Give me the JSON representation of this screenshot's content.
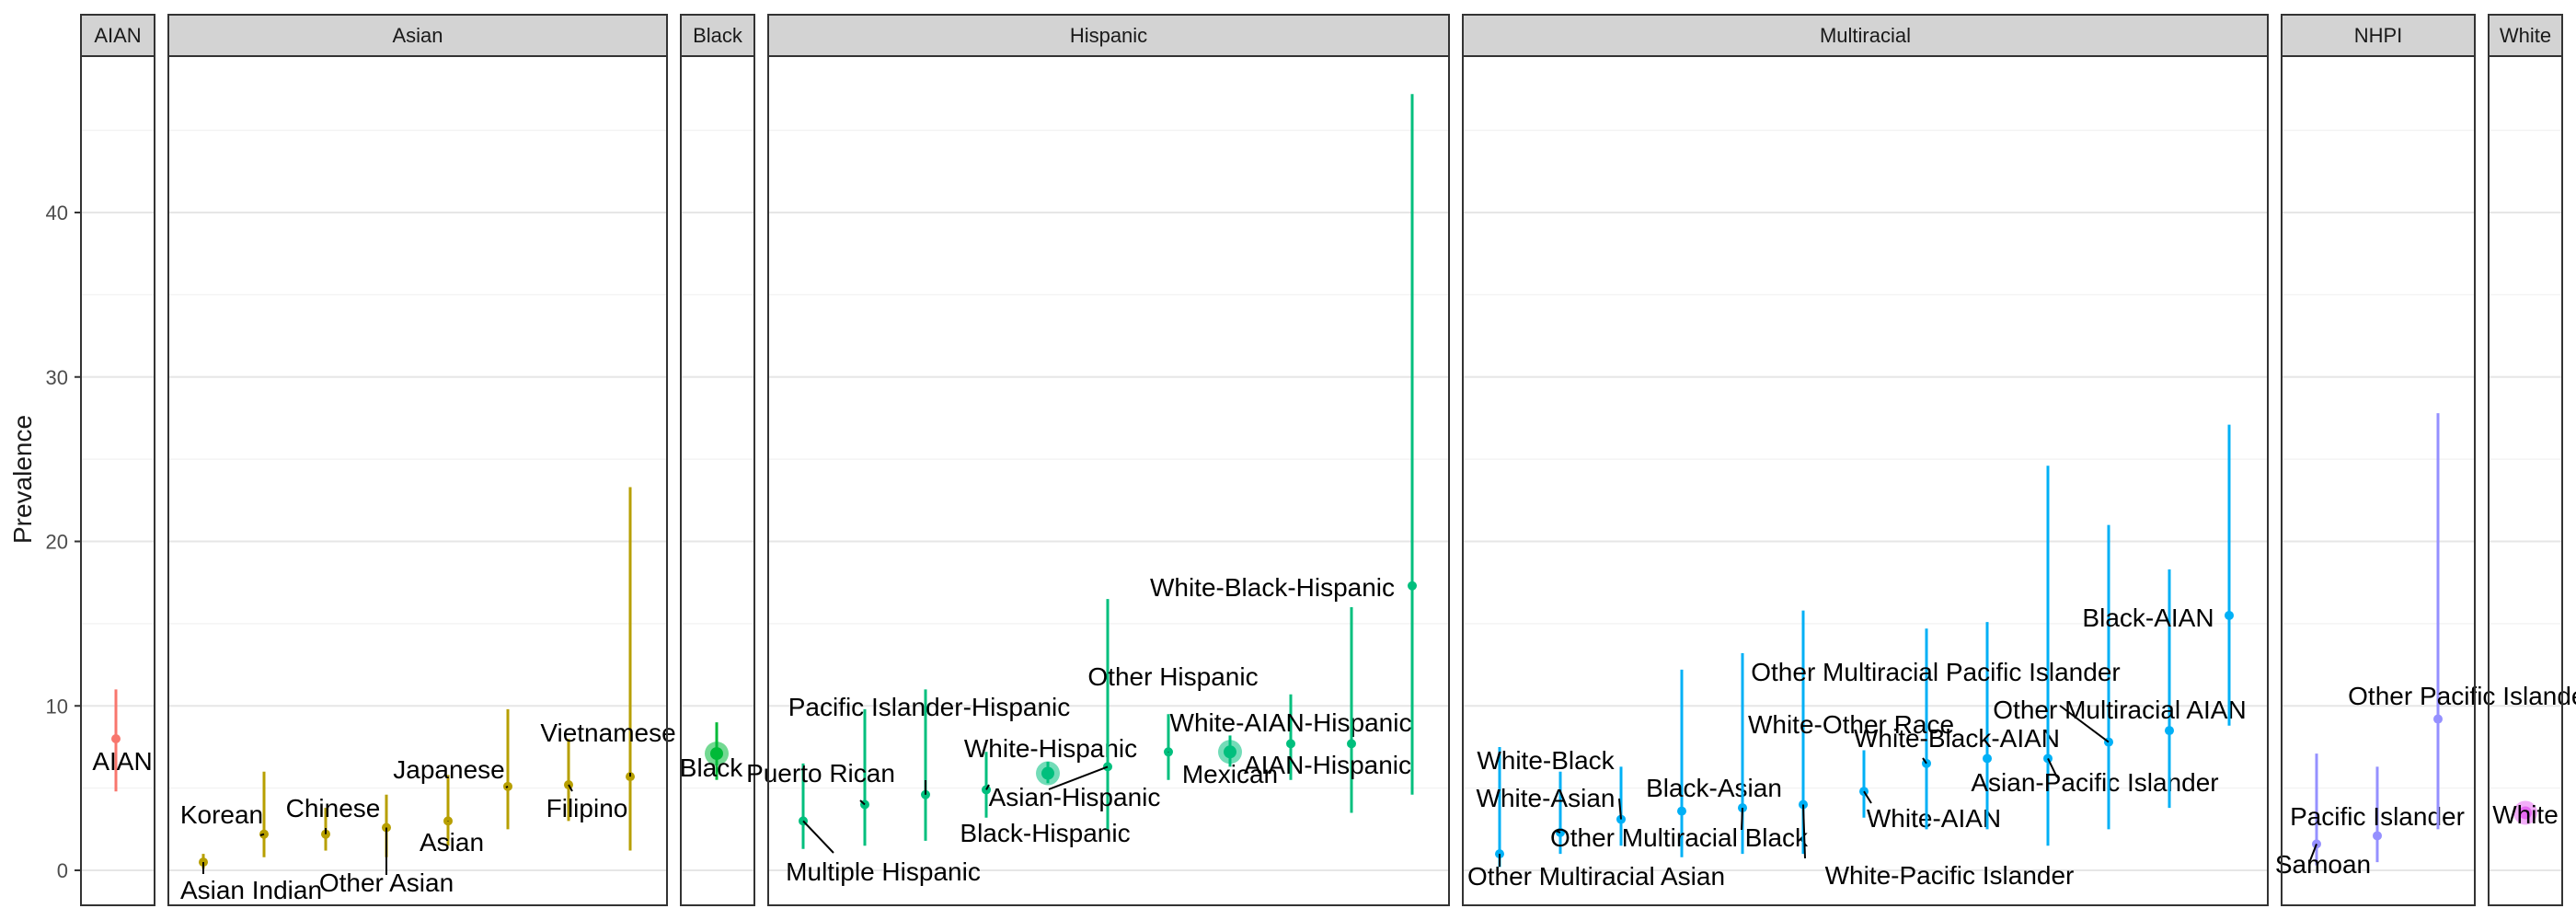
{
  "chart_data": {
    "type": "scatter",
    "subtype": "faceted point estimates with confidence intervals",
    "ylabel": "Prevalence",
    "xlabel": "",
    "ylim": [
      -3,
      50
    ],
    "yticks": [
      0,
      10,
      20,
      30,
      40
    ],
    "grid": true,
    "legend": "none",
    "facets": [
      {
        "name": "AIAN",
        "color": "#F8766D",
        "points": [
          {
            "label": "AIAN",
            "y": 8.0,
            "lo": 4.8,
            "hi": 11.0,
            "big": false
          }
        ]
      },
      {
        "name": "Asian",
        "color": "#B79F00",
        "points": [
          {
            "label": "Asian Indian",
            "y": 0.5,
            "lo": 0.1,
            "hi": 1.0,
            "big": false
          },
          {
            "label": "Korean",
            "y": 2.2,
            "lo": 0.8,
            "hi": 6.0,
            "big": false
          },
          {
            "label": "Chinese",
            "y": 2.2,
            "lo": 1.2,
            "hi": 3.8,
            "big": false
          },
          {
            "label": "Other Asian",
            "y": 2.6,
            "lo": 0.8,
            "hi": 4.6,
            "big": false
          },
          {
            "label": "Asian",
            "y": 3.0,
            "lo": 1.5,
            "hi": 5.8,
            "big": false
          },
          {
            "label": "Japanese",
            "y": 5.1,
            "lo": 2.5,
            "hi": 9.8,
            "big": false
          },
          {
            "label": "Filipino",
            "y": 5.2,
            "lo": 3.0,
            "hi": 8.0,
            "big": false
          },
          {
            "label": "Vietnamese",
            "y": 5.7,
            "lo": 1.2,
            "hi": 23.3,
            "big": false
          }
        ]
      },
      {
        "name": "Black",
        "color": "#00BA38",
        "points": [
          {
            "label": "Black",
            "y": 7.1,
            "lo": 5.5,
            "hi": 9.0,
            "big": true
          }
        ]
      },
      {
        "name": "Hispanic",
        "color": "#00BF7D",
        "points": [
          {
            "label": "Multiple Hispanic",
            "y": 3.0,
            "lo": 1.3,
            "hi": 6.5,
            "big": false
          },
          {
            "label": "Puerto Rican",
            "y": 4.0,
            "lo": 1.5,
            "hi": 9.8,
            "big": false
          },
          {
            "label": "Pacific Islander-Hispanic",
            "y": 4.6,
            "lo": 1.8,
            "hi": 11.0,
            "big": false
          },
          {
            "label": "Black-Hispanic",
            "y": 4.9,
            "lo": 3.2,
            "hi": 7.2,
            "big": false
          },
          {
            "label": "White-Hispanic",
            "y": 5.9,
            "lo": 5.3,
            "hi": 6.6,
            "big": true
          },
          {
            "label": "Asian-Hispanic",
            "y": 6.3,
            "lo": 2.5,
            "hi": 16.5,
            "big": false
          },
          {
            "label": "Other Hispanic",
            "y": 7.2,
            "lo": 5.5,
            "hi": 9.5,
            "big": false
          },
          {
            "label": "Mexican",
            "y": 7.2,
            "lo": 6.3,
            "hi": 8.2,
            "big": true
          },
          {
            "label": "White-AIAN-Hispanic",
            "y": 7.7,
            "lo": 5.5,
            "hi": 10.7,
            "big": false
          },
          {
            "label": "AIAN-Hispanic",
            "y": 7.7,
            "lo": 3.5,
            "hi": 16.0,
            "big": false
          },
          {
            "label": "White-Black-Hispanic",
            "y": 17.3,
            "lo": 4.6,
            "hi": 47.2,
            "big": false
          }
        ]
      },
      {
        "name": "Multiracial",
        "color": "#00B0F6",
        "points": [
          {
            "label": "Other Multiracial Asian",
            "y": 1.0,
            "lo": 0.2,
            "hi": 7.5,
            "big": false
          },
          {
            "label": "White-Asian",
            "y": 2.3,
            "lo": 1.0,
            "hi": 6.0,
            "big": false
          },
          {
            "label": "White-Black",
            "y": 3.1,
            "lo": 1.5,
            "hi": 6.3,
            "big": false
          },
          {
            "label": "Black-Asian",
            "y": 3.6,
            "lo": 0.8,
            "hi": 12.2,
            "big": false
          },
          {
            "label": "Other Multiracial Black",
            "y": 3.8,
            "lo": 1.0,
            "hi": 13.2,
            "big": false
          },
          {
            "label": "White-Pacific Islander",
            "y": 4.0,
            "lo": 1.0,
            "hi": 15.8,
            "big": false
          },
          {
            "label": "White-AIAN",
            "y": 4.8,
            "lo": 3.2,
            "hi": 7.3,
            "big": false
          },
          {
            "label": "White-Other Race",
            "y": 6.5,
            "lo": 2.5,
            "hi": 14.7,
            "big": false
          },
          {
            "label": "White-Black-AIAN",
            "y": 6.8,
            "lo": 2.5,
            "hi": 15.1,
            "big": false
          },
          {
            "label": "Asian-Pacific Islander",
            "y": 6.8,
            "lo": 1.5,
            "hi": 24.6,
            "big": false
          },
          {
            "label": "Other Multiracial Pacific Islander",
            "y": 7.8,
            "lo": 2.5,
            "hi": 21.0,
            "big": false
          },
          {
            "label": "Other Multiracial AIAN",
            "y": 8.5,
            "lo": 3.8,
            "hi": 18.3,
            "big": false
          },
          {
            "label": "Black-AIAN",
            "y": 15.5,
            "lo": 8.8,
            "hi": 27.1,
            "big": false
          }
        ]
      },
      {
        "name": "NHPI",
        "color": "#9590FF",
        "points": [
          {
            "label": "Samoan",
            "y": 1.6,
            "lo": 0.3,
            "hi": 7.1,
            "big": false
          },
          {
            "label": "Pacific Islander",
            "y": 2.1,
            "lo": 0.5,
            "hi": 6.3,
            "big": false
          },
          {
            "label": "Other Pacific Islander",
            "y": 9.2,
            "lo": 2.5,
            "hi": 27.8,
            "big": false
          }
        ]
      },
      {
        "name": "White",
        "color": "#E76BF3",
        "points": [
          {
            "label": "White",
            "y": 3.5,
            "lo": 3.2,
            "hi": 3.8,
            "big": true
          }
        ]
      }
    ]
  }
}
